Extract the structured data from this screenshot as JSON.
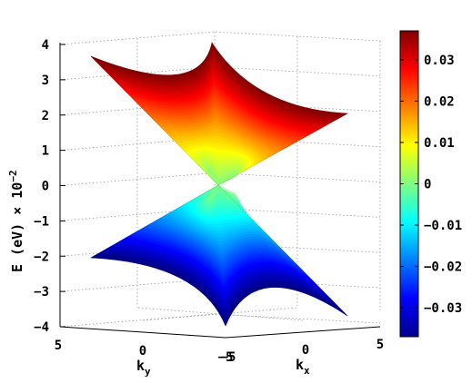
{
  "chart_data": {
    "type": "surface",
    "title": "",
    "zlabel": "E (eV) × 10",
    "zlabel_exponent": "−2",
    "xlabel": "k",
    "xlabel_sub": "x",
    "ylabel": "k",
    "ylabel_sub": "y",
    "x_ticks": [
      "−5",
      "0",
      "5"
    ],
    "y_ticks": [
      "5",
      "0",
      "−5"
    ],
    "z_ticks": [
      "4",
      "3",
      "2",
      "1",
      "0",
      "−1",
      "−2",
      "−3",
      "−4"
    ],
    "xlim": [
      -5,
      5
    ],
    "ylim": [
      -5,
      5
    ],
    "zlim": [
      -4,
      4
    ],
    "grid": true,
    "surfaces": [
      {
        "name": "",
        "sign": 1,
        "e_min": 0,
        "e_max": 4.0
      },
      {
        "name": "",
        "sign": -1,
        "e_min": -4.0,
        "e_max": 0
      }
    ],
    "colorbar": {
      "ticks": [
        "0.03",
        "0.02",
        "0.01",
        "0",
        "−0.01",
        "−0.02",
        "−0.03"
      ],
      "tick_values": [
        0.03,
        0.02,
        0.01,
        0,
        -0.01,
        -0.02,
        -0.03
      ],
      "range": [
        -0.037,
        0.037
      ],
      "colormap": "jet"
    }
  }
}
